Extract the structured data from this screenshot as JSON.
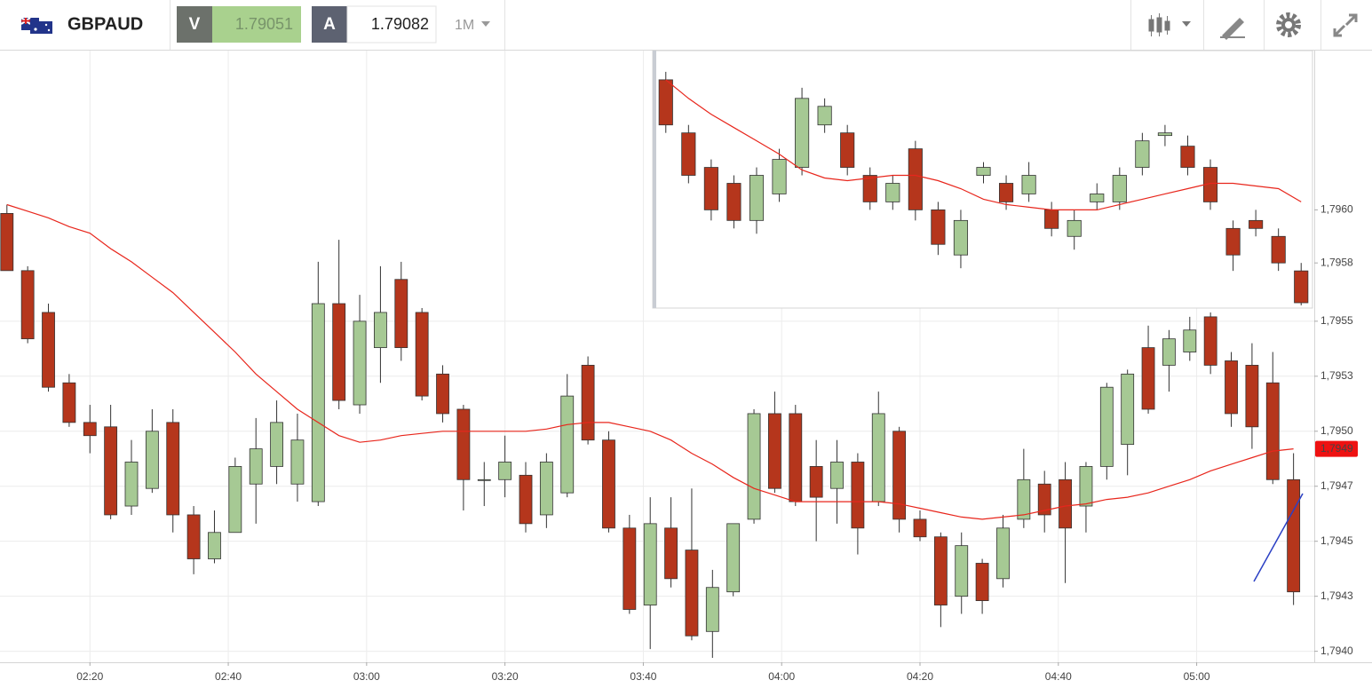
{
  "header": {
    "symbol": "GBPAUD",
    "bid": {
      "label": "V",
      "price": "1.79051"
    },
    "ask": {
      "label": "A",
      "price": "1.79082"
    },
    "timeframe": "1M"
  },
  "chart_data": [
    {
      "type": "candlestick",
      "x": [
        "02:08",
        "02:11",
        "02:14",
        "02:17",
        "02:20",
        "02:23",
        "02:26",
        "02:29",
        "02:32",
        "02:35",
        "02:38",
        "02:41",
        "02:44",
        "02:47",
        "02:50",
        "02:53",
        "02:56",
        "02:59",
        "03:02",
        "03:05",
        "03:08",
        "03:11",
        "03:14",
        "03:17",
        "03:20",
        "03:23",
        "03:26",
        "03:29",
        "03:32",
        "03:35",
        "03:38",
        "03:41",
        "03:44",
        "03:47",
        "03:50",
        "03:53",
        "03:56",
        "03:59",
        "04:02",
        "04:05",
        "04:08",
        "04:11",
        "04:14",
        "04:17",
        "04:20",
        "04:23",
        "04:26",
        "04:29",
        "04:32",
        "04:35",
        "04:38",
        "04:41",
        "04:44",
        "04:47",
        "04:50",
        "04:53",
        "04:56",
        "04:59",
        "05:02",
        "05:05",
        "05:08",
        "05:11",
        "05:14"
      ],
      "open": [
        1.79599,
        1.79573,
        1.79554,
        1.79522,
        1.79504,
        1.79502,
        1.79466,
        1.79474,
        1.79504,
        1.79462,
        1.79442,
        1.79454,
        1.79476,
        1.79484,
        1.79476,
        1.79468,
        1.79558,
        1.79512,
        1.79538,
        1.79569,
        1.79554,
        1.79526,
        1.7951,
        1.79478,
        1.79478,
        1.7948,
        1.79462,
        1.79472,
        1.7953,
        1.79496,
        1.79456,
        1.79421,
        1.79456,
        1.79446,
        1.79409,
        1.79427,
        1.7946,
        1.79508,
        1.79508,
        1.79484,
        1.79474,
        1.79486,
        1.79468,
        1.795,
        1.7946,
        1.79452,
        1.79425,
        1.7944,
        1.79433,
        1.7946,
        1.79476,
        1.79478,
        1.79466,
        1.79484,
        1.79494,
        1.79538,
        1.7953,
        1.79536,
        1.79552,
        1.79532,
        1.7953,
        1.79522,
        1.79478
      ],
      "high": [
        1.79603,
        1.79575,
        1.79558,
        1.79526,
        1.79512,
        1.79512,
        1.79496,
        1.7951,
        1.7951,
        1.79466,
        1.79464,
        1.79488,
        1.79506,
        1.79514,
        1.79508,
        1.79577,
        1.79587,
        1.79562,
        1.79575,
        1.79577,
        1.79556,
        1.7953,
        1.79512,
        1.79486,
        1.79498,
        1.79486,
        1.7949,
        1.79526,
        1.79534,
        1.795,
        1.79462,
        1.7947,
        1.7947,
        1.79474,
        1.79437,
        1.79458,
        1.7951,
        1.79518,
        1.79512,
        1.79496,
        1.79496,
        1.7949,
        1.79518,
        1.79502,
        1.79464,
        1.79454,
        1.79454,
        1.79442,
        1.79462,
        1.79492,
        1.79482,
        1.79486,
        1.79486,
        1.79522,
        1.79528,
        1.79548,
        1.79546,
        1.79552,
        1.79554,
        1.79536,
        1.7954,
        1.79536,
        1.7949
      ],
      "low": [
        1.79573,
        1.7954,
        1.79518,
        1.79502,
        1.7949,
        1.7946,
        1.79462,
        1.79472,
        1.79454,
        1.79435,
        1.7944,
        1.79454,
        1.79458,
        1.79476,
        1.79468,
        1.79466,
        1.7951,
        1.79508,
        1.79522,
        1.79532,
        1.79514,
        1.79504,
        1.79464,
        1.79466,
        1.7947,
        1.79454,
        1.79456,
        1.7947,
        1.79494,
        1.79454,
        1.79417,
        1.79401,
        1.79429,
        1.79405,
        1.79397,
        1.79425,
        1.79458,
        1.79472,
        1.79466,
        1.7945,
        1.79458,
        1.79444,
        1.79466,
        1.79454,
        1.7945,
        1.79411,
        1.79417,
        1.79417,
        1.79429,
        1.79456,
        1.79454,
        1.79431,
        1.79454,
        1.79478,
        1.7948,
        1.79508,
        1.79518,
        1.79532,
        1.79526,
        1.79502,
        1.79492,
        1.79476,
        1.79421
      ],
      "close": [
        1.79573,
        1.79542,
        1.7952,
        1.79504,
        1.79498,
        1.79462,
        1.79486,
        1.795,
        1.79462,
        1.79442,
        1.79454,
        1.79484,
        1.79492,
        1.79504,
        1.79496,
        1.79558,
        1.79514,
        1.7955,
        1.79554,
        1.79538,
        1.79516,
        1.79508,
        1.79478,
        1.79478,
        1.79486,
        1.79458,
        1.79486,
        1.79516,
        1.79496,
        1.79456,
        1.79419,
        1.79458,
        1.79433,
        1.79407,
        1.79429,
        1.79458,
        1.79508,
        1.79474,
        1.79468,
        1.7947,
        1.79486,
        1.79456,
        1.79508,
        1.7946,
        1.79452,
        1.79421,
        1.79448,
        1.79423,
        1.79456,
        1.79478,
        1.79462,
        1.79456,
        1.79484,
        1.7952,
        1.79526,
        1.7951,
        1.79542,
        1.79546,
        1.7953,
        1.79508,
        1.79502,
        1.79478,
        1.79427
      ],
      "ma": {
        "color": "#e8261c",
        "values": [
          1.79603,
          1.796,
          1.79597,
          1.79593,
          1.7959,
          1.79583,
          1.79577,
          1.7957,
          1.79563,
          1.79554,
          1.79545,
          1.79536,
          1.79526,
          1.79518,
          1.7951,
          1.79504,
          1.79498,
          1.79495,
          1.79496,
          1.79498,
          1.79499,
          1.795,
          1.795,
          1.795,
          1.795,
          1.795,
          1.79501,
          1.79503,
          1.79504,
          1.79504,
          1.79502,
          1.795,
          1.79496,
          1.7949,
          1.79485,
          1.79479,
          1.79474,
          1.79471,
          1.79468,
          1.79468,
          1.79468,
          1.79468,
          1.79468,
          1.79467,
          1.79465,
          1.79463,
          1.79461,
          1.7946,
          1.79461,
          1.79462,
          1.79464,
          1.79466,
          1.79467,
          1.79469,
          1.7947,
          1.79472,
          1.79475,
          1.79478,
          1.79482,
          1.79485,
          1.79488,
          1.79491,
          1.79492
        ]
      },
      "up_color": "#a6c994",
      "down_color": "#b5361c",
      "xlim": [
        "02:07",
        "05:17"
      ],
      "xticks": [
        "02:20",
        "02:40",
        "03:00",
        "03:20",
        "03:40",
        "04:00",
        "04:20",
        "04:40",
        "05:00"
      ],
      "ylim": [
        1.79395,
        1.79673
      ],
      "yticks": [
        {
          "value": 1.794,
          "label": "1,7940"
        },
        {
          "value": 1.79425,
          "label": "1,7943"
        },
        {
          "value": 1.7945,
          "label": "1,7945"
        },
        {
          "value": 1.79475,
          "label": "1,7947"
        },
        {
          "value": 1.795,
          "label": "1,7950"
        },
        {
          "value": 1.79525,
          "label": "1,7953"
        },
        {
          "value": 1.7955,
          "label": "1,7955"
        }
      ],
      "last_price": {
        "value": 1.79492,
        "label": "1,7949",
        "color": "#ee1111"
      },
      "grid": true
    },
    {
      "type": "candlestick",
      "open": [
        1.79649,
        1.79629,
        1.79616,
        1.7961,
        1.79596,
        1.79606,
        1.79616,
        1.79632,
        1.79629,
        1.79613,
        1.79603,
        1.79623,
        1.796,
        1.79583,
        1.79613,
        1.7961,
        1.79606,
        1.796,
        1.7959,
        1.79603,
        1.79603,
        1.79616,
        1.79628,
        1.79624,
        1.79616,
        1.79593,
        1.79596,
        1.7959,
        1.79577
      ],
      "high": [
        1.79652,
        1.79632,
        1.79619,
        1.79613,
        1.79616,
        1.79623,
        1.79646,
        1.79642,
        1.79632,
        1.79616,
        1.79613,
        1.79626,
        1.79603,
        1.796,
        1.79618,
        1.79613,
        1.79618,
        1.79603,
        1.796,
        1.7961,
        1.79616,
        1.79629,
        1.79632,
        1.79628,
        1.79619,
        1.79596,
        1.796,
        1.79593,
        1.7958
      ],
      "low": [
        1.79629,
        1.7961,
        1.79596,
        1.79593,
        1.79591,
        1.79603,
        1.79613,
        1.79629,
        1.79613,
        1.796,
        1.796,
        1.79596,
        1.79583,
        1.79578,
        1.7961,
        1.796,
        1.79603,
        1.7959,
        1.79585,
        1.796,
        1.796,
        1.79613,
        1.79624,
        1.79613,
        1.796,
        1.79577,
        1.7959,
        1.79577,
        1.79564
      ],
      "close": [
        1.79632,
        1.79613,
        1.796,
        1.79596,
        1.79613,
        1.79619,
        1.79642,
        1.79639,
        1.79616,
        1.79603,
        1.7961,
        1.796,
        1.79587,
        1.79596,
        1.79616,
        1.79603,
        1.79613,
        1.79593,
        1.79596,
        1.79606,
        1.79613,
        1.79626,
        1.79629,
        1.79616,
        1.79603,
        1.79583,
        1.79593,
        1.7958,
        1.79565
      ],
      "ma": {
        "color": "#e8261c",
        "values": [
          1.79649,
          1.79642,
          1.79636,
          1.79631,
          1.79626,
          1.79621,
          1.79615,
          1.79612,
          1.79611,
          1.79612,
          1.79613,
          1.79613,
          1.79611,
          1.79608,
          1.79604,
          1.79602,
          1.79601,
          1.796,
          1.796,
          1.796,
          1.79602,
          1.79604,
          1.79606,
          1.79608,
          1.7961,
          1.7961,
          1.79609,
          1.79608,
          1.79603
        ]
      },
      "up_color": "#a6c994",
      "down_color": "#b5361c",
      "ylim": [
        1.79563,
        1.7966
      ],
      "yticks": [
        {
          "value": 1.7958,
          "label": "1,7958"
        },
        {
          "value": 1.796,
          "label": "1,7960"
        }
      ]
    }
  ]
}
